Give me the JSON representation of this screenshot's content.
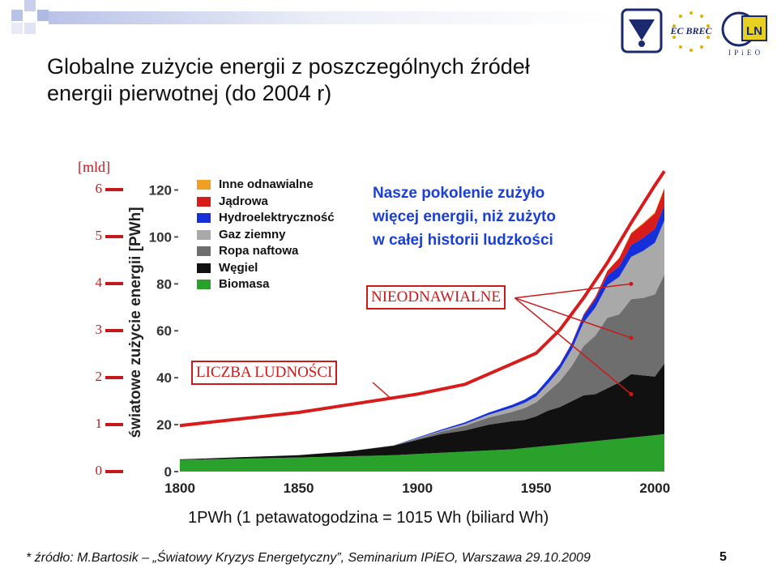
{
  "slide": {
    "title_line1": "Globalne zużycie energii z poszczególnych źródeł",
    "title_line2": "energii pierwotnej (do 2004 r)",
    "unit_note": "1PWh (1 petawatogodzina = 1015 Wh (biliard Wh)",
    "source": "* źródło: M.Bartosik – „Światowy Kryzys Energetyczny”, Seminarium IPiEO, Warszawa 29.10.2009",
    "page_number": "5",
    "logos": {
      "left": "ecology-logo",
      "middle": "EC BREC",
      "right": "LN",
      "right_caption": "I P i E O"
    },
    "colors": {
      "title": "#111111",
      "accent_blue": "#1a3fd6",
      "accent_red": "#cc1a1a"
    }
  },
  "chart_data": {
    "type": "area",
    "ylabel": "światowe zużycie energii [PWh]",
    "left_axis_label": "[mld]",
    "annotation": "Nasze pokolenie zużyło więcej energii, niż zużyto w całej historii ludzkości",
    "annotation_lines": [
      "Nasze pokolenie zużyło",
      "więcej energii, niż zużyto",
      "w całej historii ludzkości"
    ],
    "label_nonrenewable": "NIEODNAWIALNE",
    "label_population": "LICZBA LUDNOŚCI",
    "x_ticks": [
      "1800",
      "1850",
      "1900",
      "1950",
      "2000"
    ],
    "y_ticks": [
      "0",
      "20",
      "40",
      "60",
      "80",
      "100",
      "120"
    ],
    "population_ticks": [
      "0",
      "1",
      "2",
      "3",
      "4",
      "5",
      "6"
    ],
    "xlim": [
      1800,
      2004
    ],
    "ylim": [
      0,
      125
    ],
    "x": [
      1800,
      1850,
      1870,
      1890,
      1900,
      1910,
      1920,
      1930,
      1940,
      1945,
      1950,
      1955,
      1960,
      1965,
      1970,
      1975,
      1980,
      1985,
      1990,
      1995,
      2000,
      2004
    ],
    "series": [
      {
        "name": "Biomasa",
        "color": "#2aa12a",
        "values": [
          5,
          6,
          6.5,
          7,
          7.5,
          8,
          8.5,
          9,
          9.5,
          10,
          10.5,
          11,
          11.5,
          12,
          12.5,
          13,
          13.5,
          14,
          14.5,
          15,
          15.5,
          16
        ]
      },
      {
        "name": "Węgiel",
        "color": "#111111",
        "values": [
          0.2,
          1,
          2,
          4,
          6,
          8,
          9,
          11,
          12,
          12,
          13,
          15,
          16,
          18,
          20,
          20,
          22,
          24,
          27,
          26,
          25,
          30
        ]
      },
      {
        "name": "Ropa naftowa",
        "color": "#6e6e6e",
        "values": [
          0,
          0,
          0,
          0.2,
          0.5,
          1,
          2,
          3,
          4,
          5,
          6,
          8,
          11,
          15,
          21,
          25,
          30,
          29,
          32,
          33,
          35,
          38
        ]
      },
      {
        "name": "Gaz ziemny",
        "color": "#a9a9a9",
        "values": [
          0,
          0,
          0,
          0,
          0.2,
          0.4,
          0.8,
          1.2,
          1.8,
          2.2,
          2.5,
          3.5,
          5,
          7,
          10,
          12,
          14,
          16,
          18,
          20,
          22,
          23
        ]
      },
      {
        "name": "Hydroelektryczność",
        "color": "#1530d8",
        "values": [
          0,
          0,
          0,
          0,
          0.3,
          0.5,
          0.7,
          0.9,
          1.2,
          1.4,
          1.6,
          1.9,
          2.2,
          2.6,
          3,
          3.5,
          4,
          4.5,
          5,
          5.5,
          6,
          6.5
        ]
      },
      {
        "name": "Jądrowa",
        "color": "#d81c1c",
        "values": [
          0,
          0,
          0,
          0,
          0,
          0,
          0,
          0,
          0,
          0,
          0,
          0,
          0.1,
          0.2,
          0.5,
          1,
          2,
          3.5,
          5,
          6,
          6.5,
          7
        ]
      },
      {
        "name": "Inne odnawialne",
        "color": "#f0a020",
        "values": [
          0,
          0,
          0,
          0,
          0,
          0,
          0,
          0,
          0,
          0,
          0,
          0,
          0,
          0,
          0,
          0,
          0.1,
          0.2,
          0.3,
          0.4,
          0.5,
          0.6
        ]
      }
    ],
    "population_curve": {
      "color": "#d81c1c",
      "x": [
        1800,
        1850,
        1900,
        1920,
        1940,
        1950,
        1960,
        1970,
        1980,
        1990,
        2000,
        2004
      ],
      "values": [
        0.98,
        1.26,
        1.65,
        1.86,
        2.3,
        2.52,
        3.02,
        3.7,
        4.45,
        5.3,
        6.1,
        6.4
      ]
    }
  }
}
